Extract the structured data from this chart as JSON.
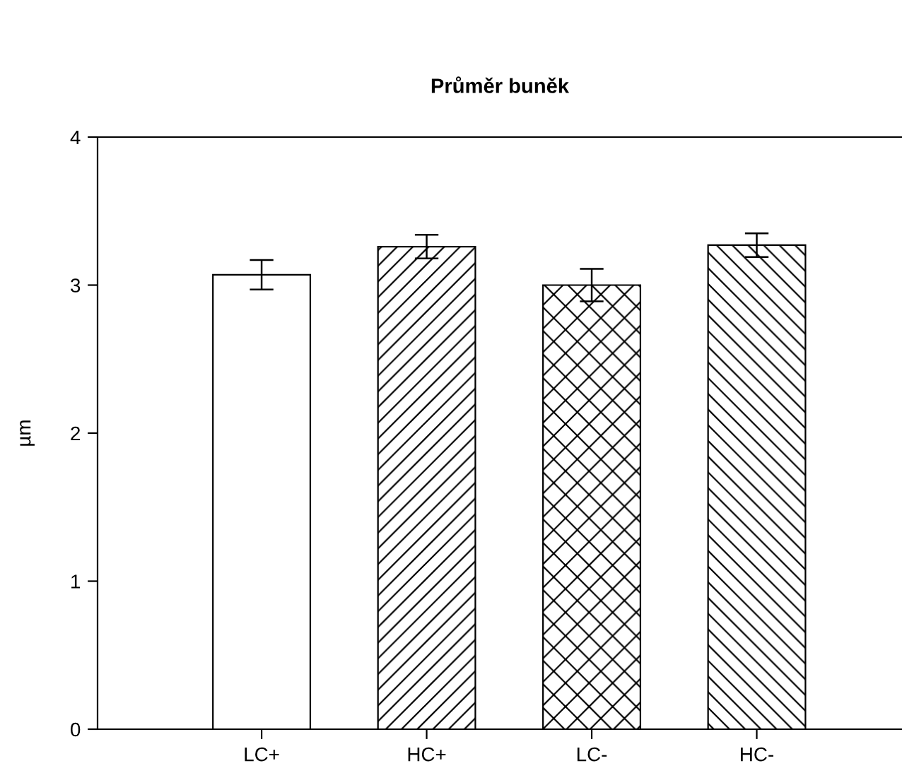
{
  "chart_data": {
    "type": "bar",
    "title": "Průměr buněk",
    "ylabel": "µm",
    "categories": [
      "LC+",
      "HC+",
      "LC-",
      "HC-"
    ],
    "values": [
      3.07,
      3.26,
      3.0,
      3.27
    ],
    "errors": [
      0.1,
      0.08,
      0.11,
      0.08
    ],
    "ylim": [
      0,
      4
    ],
    "yticks": [
      0,
      1,
      2,
      3,
      4
    ],
    "grid": false,
    "legend": false
  }
}
